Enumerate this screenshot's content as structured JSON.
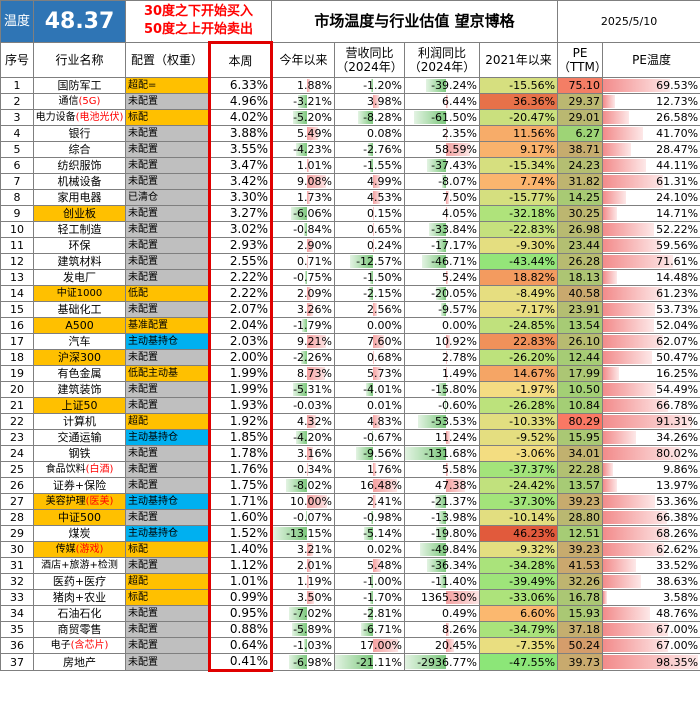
{
  "header": {
    "temp_label": "温度",
    "temp_value": "48.37",
    "rule_line1": "30度之下开始买入",
    "rule_line2": "50度之上开始卖出",
    "title": "市场温度与行业估值 望京博格",
    "date": "2025/5/10"
  },
  "columns": [
    "序号",
    "行业名称",
    "配置（权重）",
    "本周",
    "今年以来",
    "营收同比（2024年）",
    "利润同比（2024年）",
    "2021年以来",
    "PE（TTM）",
    "PE温度"
  ],
  "colors": {
    "index_yellow": "#ffc000",
    "active_blue": "#00b0f0",
    "alloc_gray": "#bfbfbf",
    "bar_red": "#f4a0a0",
    "bar_green": "#9bd49b"
  },
  "rows": [
    {
      "no": "1",
      "name": "国防军工",
      "name_hl": "",
      "alloc": "超配=",
      "week": "6.33%",
      "ytd": "1.88%",
      "ytd_v": 1.88,
      "rev": "-1.20%",
      "rev_v": -1.2,
      "profit": "-39.24%",
      "profit_v": -39.24,
      "since21": "-15.56%",
      "since21_v": -15.56,
      "pe": "75.10",
      "pe_v": 75.1,
      "pet": "69.53%",
      "pet_v": 69.53,
      "name_bg": "#ffffff",
      "alloc_bg": "#ffc000"
    },
    {
      "no": "2",
      "name": "通信",
      "name_hl": "(5G)",
      "alloc": "未配置",
      "week": "4.96%",
      "ytd": "-3.21%",
      "ytd_v": -3.21,
      "rev": "3.98%",
      "rev_v": 3.98,
      "profit": "6.44%",
      "profit_v": 6.44,
      "since21": "36.36%",
      "since21_v": 36.36,
      "pe": "29.37",
      "pe_v": 29.37,
      "pet": "12.73%",
      "pet_v": 12.73,
      "name_bg": "#ffffff",
      "alloc_bg": "#bfbfbf"
    },
    {
      "no": "3",
      "name": "电力设备",
      "name_hl": "(电池光伏)",
      "alloc": "标配",
      "week": "4.02%",
      "ytd": "-5.20%",
      "ytd_v": -5.2,
      "rev": "-8.28%",
      "rev_v": -8.28,
      "profit": "-61.50%",
      "profit_v": -61.5,
      "since21": "-20.47%",
      "since21_v": -20.47,
      "pe": "29.01",
      "pe_v": 29.01,
      "pet": "26.58%",
      "pet_v": 26.58,
      "name_bg": "#ffffff",
      "alloc_bg": "#ffc000"
    },
    {
      "no": "4",
      "name": "银行",
      "name_hl": "",
      "alloc": "未配置",
      "week": "3.88%",
      "ytd": "5.49%",
      "ytd_v": 5.49,
      "rev": "0.08%",
      "rev_v": 0.08,
      "profit": "2.35%",
      "profit_v": 2.35,
      "since21": "11.56%",
      "since21_v": 11.56,
      "pe": "6.27",
      "pe_v": 6.27,
      "pet": "41.70%",
      "pet_v": 41.7,
      "name_bg": "#ffffff",
      "alloc_bg": "#bfbfbf"
    },
    {
      "no": "5",
      "name": "综合",
      "name_hl": "",
      "alloc": "未配置",
      "week": "3.55%",
      "ytd": "-4.23%",
      "ytd_v": -4.23,
      "rev": "-2.76%",
      "rev_v": -2.76,
      "profit": "58.59%",
      "profit_v": 58.59,
      "since21": "9.17%",
      "since21_v": 9.17,
      "pe": "38.71",
      "pe_v": 38.71,
      "pet": "28.47%",
      "pet_v": 28.47,
      "name_bg": "#ffffff",
      "alloc_bg": "#bfbfbf"
    },
    {
      "no": "6",
      "name": "纺织服饰",
      "name_hl": "",
      "alloc": "未配置",
      "week": "3.47%",
      "ytd": "1.01%",
      "ytd_v": 1.01,
      "rev": "-1.55%",
      "rev_v": -1.55,
      "profit": "-37.43%",
      "profit_v": -37.43,
      "since21": "-15.34%",
      "since21_v": -15.34,
      "pe": "24.23",
      "pe_v": 24.23,
      "pet": "44.11%",
      "pet_v": 44.11,
      "name_bg": "#ffffff",
      "alloc_bg": "#bfbfbf"
    },
    {
      "no": "7",
      "name": "机械设备",
      "name_hl": "",
      "alloc": "未配置",
      "week": "3.42%",
      "ytd": "9.08%",
      "ytd_v": 9.08,
      "rev": "4.99%",
      "rev_v": 4.99,
      "profit": "-8.07%",
      "profit_v": -8.07,
      "since21": "7.74%",
      "since21_v": 7.74,
      "pe": "31.82",
      "pe_v": 31.82,
      "pet": "61.31%",
      "pet_v": 61.31,
      "name_bg": "#ffffff",
      "alloc_bg": "#bfbfbf"
    },
    {
      "no": "8",
      "name": "家用电器",
      "name_hl": "",
      "alloc": "已清仓",
      "week": "3.30%",
      "ytd": "1.73%",
      "ytd_v": 1.73,
      "rev": "4.53%",
      "rev_v": 4.53,
      "profit": "7.50%",
      "profit_v": 7.5,
      "since21": "-15.77%",
      "since21_v": -15.77,
      "pe": "14.25",
      "pe_v": 14.25,
      "pet": "24.10%",
      "pet_v": 24.1,
      "name_bg": "#ffffff",
      "alloc_bg": "#bfbfbf"
    },
    {
      "no": "9",
      "name": "创业板",
      "name_hl": "",
      "alloc": "未配置",
      "week": "3.27%",
      "ytd": "-6.06%",
      "ytd_v": -6.06,
      "rev": "0.15%",
      "rev_v": 0.15,
      "profit": "4.05%",
      "profit_v": 4.05,
      "since21": "-32.18%",
      "since21_v": -32.18,
      "pe": "30.25",
      "pe_v": 30.25,
      "pet": "14.71%",
      "pet_v": 14.71,
      "name_bg": "#ffc000",
      "alloc_bg": "#bfbfbf"
    },
    {
      "no": "10",
      "name": "轻工制造",
      "name_hl": "",
      "alloc": "未配置",
      "week": "3.02%",
      "ytd": "-0.84%",
      "ytd_v": -0.84,
      "rev": "0.65%",
      "rev_v": 0.65,
      "profit": "-33.84%",
      "profit_v": -33.84,
      "since21": "-22.83%",
      "since21_v": -22.83,
      "pe": "26.98",
      "pe_v": 26.98,
      "pet": "52.22%",
      "pet_v": 52.22,
      "name_bg": "#ffffff",
      "alloc_bg": "#bfbfbf"
    },
    {
      "no": "11",
      "name": "环保",
      "name_hl": "",
      "alloc": "未配置",
      "week": "2.93%",
      "ytd": "2.90%",
      "ytd_v": 2.9,
      "rev": "0.24%",
      "rev_v": 0.24,
      "profit": "-17.17%",
      "profit_v": -17.17,
      "since21": "-9.30%",
      "since21_v": -9.3,
      "pe": "23.44",
      "pe_v": 23.44,
      "pet": "59.56%",
      "pet_v": 59.56,
      "name_bg": "#ffffff",
      "alloc_bg": "#bfbfbf"
    },
    {
      "no": "12",
      "name": "建筑材料",
      "name_hl": "",
      "alloc": "未配置",
      "week": "2.55%",
      "ytd": "0.71%",
      "ytd_v": 0.71,
      "rev": "-12.57%",
      "rev_v": -12.57,
      "profit": "-46.71%",
      "profit_v": -46.71,
      "since21": "-43.44%",
      "since21_v": -43.44,
      "pe": "26.28",
      "pe_v": 26.28,
      "pet": "71.61%",
      "pet_v": 71.61,
      "name_bg": "#ffffff",
      "alloc_bg": "#bfbfbf"
    },
    {
      "no": "13",
      "name": "发电厂",
      "name_hl": "",
      "alloc": "未配置",
      "week": "2.22%",
      "ytd": "-0.75%",
      "ytd_v": -0.75,
      "rev": "-1.50%",
      "rev_v": -1.5,
      "profit": "5.24%",
      "profit_v": 5.24,
      "since21": "18.82%",
      "since21_v": 18.82,
      "pe": "18.13",
      "pe_v": 18.13,
      "pet": "14.48%",
      "pet_v": 14.48,
      "name_bg": "#ffffff",
      "alloc_bg": "#bfbfbf"
    },
    {
      "no": "14",
      "name": "中证1000",
      "name_hl": "",
      "alloc": "低配",
      "week": "2.22%",
      "ytd": "2.09%",
      "ytd_v": 2.09,
      "rev": "-2.15%",
      "rev_v": -2.15,
      "profit": "-20.05%",
      "profit_v": -20.05,
      "since21": "-8.49%",
      "since21_v": -8.49,
      "pe": "40.58",
      "pe_v": 40.58,
      "pet": "61.23%",
      "pet_v": 61.23,
      "name_bg": "#ffc000",
      "alloc_bg": "#ffc000"
    },
    {
      "no": "15",
      "name": "基础化工",
      "name_hl": "",
      "alloc": "未配置",
      "week": "2.07%",
      "ytd": "3.26%",
      "ytd_v": 3.26,
      "rev": "2.56%",
      "rev_v": 2.56,
      "profit": "-9.57%",
      "profit_v": -9.57,
      "since21": "-7.17%",
      "since21_v": -7.17,
      "pe": "23.91",
      "pe_v": 23.91,
      "pet": "53.73%",
      "pet_v": 53.73,
      "name_bg": "#ffffff",
      "alloc_bg": "#bfbfbf"
    },
    {
      "no": "16",
      "name": "A500",
      "name_hl": "",
      "alloc": "基准配置",
      "week": "2.04%",
      "ytd": "-1.79%",
      "ytd_v": -1.79,
      "rev": "0.00%",
      "rev_v": 0,
      "profit": "0.00%",
      "profit_v": 0,
      "since21": "-24.85%",
      "since21_v": -24.85,
      "pe": "13.54",
      "pe_v": 13.54,
      "pet": "52.04%",
      "pet_v": 52.04,
      "name_bg": "#ffc000",
      "alloc_bg": "#ffc000"
    },
    {
      "no": "17",
      "name": "汽车",
      "name_hl": "",
      "alloc": "主动基持仓",
      "week": "2.03%",
      "ytd": "9.21%",
      "ytd_v": 9.21,
      "rev": "7.60%",
      "rev_v": 7.6,
      "profit": "10.92%",
      "profit_v": 10.92,
      "since21": "22.83%",
      "since21_v": 22.83,
      "pe": "26.10",
      "pe_v": 26.1,
      "pet": "62.07%",
      "pet_v": 62.07,
      "name_bg": "#ffffff",
      "alloc_bg": "#00b0f0"
    },
    {
      "no": "18",
      "name": "沪深300",
      "name_hl": "",
      "alloc": "未配置",
      "week": "2.00%",
      "ytd": "-2.26%",
      "ytd_v": -2.26,
      "rev": "0.68%",
      "rev_v": 0.68,
      "profit": "2.78%",
      "profit_v": 2.78,
      "since21": "-26.20%",
      "since21_v": -26.2,
      "pe": "12.44",
      "pe_v": 12.44,
      "pet": "50.47%",
      "pet_v": 50.47,
      "name_bg": "#ffc000",
      "alloc_bg": "#bfbfbf"
    },
    {
      "no": "19",
      "name": "有色金属",
      "name_hl": "",
      "alloc": "低配主动基",
      "week": "1.99%",
      "ytd": "8.73%",
      "ytd_v": 8.73,
      "rev": "5.73%",
      "rev_v": 5.73,
      "profit": "1.49%",
      "profit_v": 1.49,
      "since21": "14.67%",
      "since21_v": 14.67,
      "pe": "17.99",
      "pe_v": 17.99,
      "pet": "16.25%",
      "pet_v": 16.25,
      "name_bg": "#ffffff",
      "alloc_bg": "#ffc000"
    },
    {
      "no": "20",
      "name": "建筑装饰",
      "name_hl": "",
      "alloc": "未配置",
      "week": "1.99%",
      "ytd": "-5.31%",
      "ytd_v": -5.31,
      "rev": "-4.01%",
      "rev_v": -4.01,
      "profit": "-15.80%",
      "profit_v": -15.8,
      "since21": "-1.97%",
      "since21_v": -1.97,
      "pe": "10.50",
      "pe_v": 10.5,
      "pet": "54.49%",
      "pet_v": 54.49,
      "name_bg": "#ffffff",
      "alloc_bg": "#bfbfbf"
    },
    {
      "no": "21",
      "name": "上证50",
      "name_hl": "",
      "alloc": "未配置",
      "week": "1.93%",
      "ytd": "-0.03%",
      "ytd_v": -0.03,
      "rev": "0.01%",
      "rev_v": 0.01,
      "profit": "-0.60%",
      "profit_v": -0.6,
      "since21": "-26.28%",
      "since21_v": -26.28,
      "pe": "10.84",
      "pe_v": 10.84,
      "pet": "66.78%",
      "pet_v": 66.78,
      "name_bg": "#ffc000",
      "alloc_bg": "#bfbfbf"
    },
    {
      "no": "22",
      "name": "计算机",
      "name_hl": "",
      "alloc": "超配",
      "week": "1.92%",
      "ytd": "4.32%",
      "ytd_v": 4.32,
      "rev": "4.83%",
      "rev_v": 4.83,
      "profit": "-53.53%",
      "profit_v": -53.53,
      "since21": "-10.33%",
      "since21_v": -10.33,
      "pe": "80.29",
      "pe_v": 80.29,
      "pet": "91.31%",
      "pet_v": 91.31,
      "name_bg": "#ffffff",
      "alloc_bg": "#ffc000"
    },
    {
      "no": "23",
      "name": "交通运输",
      "name_hl": "",
      "alloc": "主动基持仓",
      "week": "1.85%",
      "ytd": "-4.20%",
      "ytd_v": -4.2,
      "rev": "-0.67%",
      "rev_v": -0.67,
      "profit": "11.24%",
      "profit_v": 11.24,
      "since21": "-9.52%",
      "since21_v": -9.52,
      "pe": "15.95",
      "pe_v": 15.95,
      "pet": "34.26%",
      "pet_v": 34.26,
      "name_bg": "#ffffff",
      "alloc_bg": "#00b0f0"
    },
    {
      "no": "24",
      "name": "钢铁",
      "name_hl": "",
      "alloc": "未配置",
      "week": "1.78%",
      "ytd": "3.16%",
      "ytd_v": 3.16,
      "rev": "-9.56%",
      "rev_v": -9.56,
      "profit": "-131.68%",
      "profit_v": -131.68,
      "since21": "-3.06%",
      "since21_v": -3.06,
      "pe": "34.01",
      "pe_v": 34.01,
      "pet": "80.02%",
      "pet_v": 80.02,
      "name_bg": "#ffffff",
      "alloc_bg": "#bfbfbf"
    },
    {
      "no": "25",
      "name": "食品饮料",
      "name_hl": "(白酒)",
      "alloc": "未配置",
      "week": "1.76%",
      "ytd": "0.34%",
      "ytd_v": 0.34,
      "rev": "1.76%",
      "rev_v": 1.76,
      "profit": "5.58%",
      "profit_v": 5.58,
      "since21": "-37.37%",
      "since21_v": -37.37,
      "pe": "22.28",
      "pe_v": 22.28,
      "pet": "9.86%",
      "pet_v": 9.86,
      "name_bg": "#ffffff",
      "alloc_bg": "#bfbfbf"
    },
    {
      "no": "26",
      "name": "证券+保险",
      "name_hl": "",
      "alloc": "未配置",
      "week": "1.75%",
      "ytd": "-8.02%",
      "ytd_v": -8.02,
      "rev": "16.48%",
      "rev_v": 16.48,
      "profit": "47.38%",
      "profit_v": 47.38,
      "since21": "-24.42%",
      "since21_v": -24.42,
      "pe": "13.57",
      "pe_v": 13.57,
      "pet": "13.97%",
      "pet_v": 13.97,
      "name_bg": "#ffffff",
      "alloc_bg": "#bfbfbf"
    },
    {
      "no": "27",
      "name": "美容护理",
      "name_hl": "(医美)",
      "alloc": "主动基持仓",
      "week": "1.71%",
      "ytd": "10.00%",
      "ytd_v": 10,
      "rev": "2.41%",
      "rev_v": 2.41,
      "profit": "-21.37%",
      "profit_v": -21.37,
      "since21": "-37.30%",
      "since21_v": -37.3,
      "pe": "39.23",
      "pe_v": 39.23,
      "pet": "53.36%",
      "pet_v": 53.36,
      "name_bg": "#ffc000",
      "alloc_bg": "#00b0f0"
    },
    {
      "no": "28",
      "name": "中证500",
      "name_hl": "",
      "alloc": "未配置",
      "week": "1.60%",
      "ytd": "-0.07%",
      "ytd_v": -0.07,
      "rev": "-0.98%",
      "rev_v": -0.98,
      "profit": "-13.98%",
      "profit_v": -13.98,
      "since21": "-10.14%",
      "since21_v": -10.14,
      "pe": "28.80",
      "pe_v": 28.8,
      "pet": "66.38%",
      "pet_v": 66.38,
      "name_bg": "#ffc000",
      "alloc_bg": "#bfbfbf"
    },
    {
      "no": "29",
      "name": "煤炭",
      "name_hl": "",
      "alloc": "主动基持仓",
      "week": "1.52%",
      "ytd": "-13.15%",
      "ytd_v": -13.15,
      "rev": "-5.14%",
      "rev_v": -5.14,
      "profit": "-19.80%",
      "profit_v": -19.8,
      "since21": "46.23%",
      "since21_v": 46.23,
      "pe": "12.51",
      "pe_v": 12.51,
      "pet": "68.26%",
      "pet_v": 68.26,
      "name_bg": "#ffffff",
      "alloc_bg": "#00b0f0"
    },
    {
      "no": "30",
      "name": "传媒",
      "name_hl": "(游戏)",
      "alloc": "标配",
      "week": "1.40%",
      "ytd": "3.21%",
      "ytd_v": 3.21,
      "rev": "0.02%",
      "rev_v": 0.02,
      "profit": "-49.84%",
      "profit_v": -49.84,
      "since21": "-9.32%",
      "since21_v": -9.32,
      "pe": "39.23",
      "pe_v": 39.23,
      "pet": "62.62%",
      "pet_v": 62.62,
      "name_bg": "#ffc000",
      "alloc_bg": "#ffc000"
    },
    {
      "no": "31",
      "name": "酒店+旅游+检测",
      "name_hl": "",
      "alloc": "未配置",
      "week": "1.12%",
      "ytd": "2.01%",
      "ytd_v": 2.01,
      "rev": "5.48%",
      "rev_v": 5.48,
      "profit": "-36.34%",
      "profit_v": -36.34,
      "since21": "-34.28%",
      "since21_v": -34.28,
      "pe": "41.53",
      "pe_v": 41.53,
      "pet": "33.52%",
      "pet_v": 33.52,
      "name_bg": "#ffffff",
      "alloc_bg": "#bfbfbf"
    },
    {
      "no": "32",
      "name": "医药+医疗",
      "name_hl": "",
      "alloc": "超配",
      "week": "1.01%",
      "ytd": "1.19%",
      "ytd_v": 1.19,
      "rev": "-1.00%",
      "rev_v": -1.0,
      "profit": "-11.40%",
      "profit_v": -11.4,
      "since21": "-39.49%",
      "since21_v": -39.49,
      "pe": "32.26",
      "pe_v": 32.26,
      "pet": "38.63%",
      "pet_v": 38.63,
      "name_bg": "#ffffff",
      "alloc_bg": "#ffc000"
    },
    {
      "no": "33",
      "name": "猪肉+农业",
      "name_hl": "",
      "alloc": "标配",
      "week": "0.99%",
      "ytd": "3.50%",
      "ytd_v": 3.5,
      "rev": "-1.70%",
      "rev_v": -1.7,
      "profit": "1365.30%",
      "profit_v": 1365.3,
      "since21": "-33.06%",
      "since21_v": -33.06,
      "pe": "16.78",
      "pe_v": 16.78,
      "pet": "3.58%",
      "pet_v": 3.58,
      "name_bg": "#ffffff",
      "alloc_bg": "#ffc000"
    },
    {
      "no": "34",
      "name": "石油石化",
      "name_hl": "",
      "alloc": "未配置",
      "week": "0.95%",
      "ytd": "-7.02%",
      "ytd_v": -7.02,
      "rev": "-2.81%",
      "rev_v": -2.81,
      "profit": "0.49%",
      "profit_v": 0.49,
      "since21": "6.60%",
      "since21_v": 6.6,
      "pe": "15.93",
      "pe_v": 15.93,
      "pet": "48.76%",
      "pet_v": 48.76,
      "name_bg": "#ffffff",
      "alloc_bg": "#bfbfbf"
    },
    {
      "no": "35",
      "name": "商贸零售",
      "name_hl": "",
      "alloc": "未配置",
      "week": "0.88%",
      "ytd": "-5.89%",
      "ytd_v": -5.89,
      "rev": "-6.71%",
      "rev_v": -6.71,
      "profit": "8.26%",
      "profit_v": 8.26,
      "since21": "-34.79%",
      "since21_v": -34.79,
      "pe": "37.18",
      "pe_v": 37.18,
      "pet": "67.00%",
      "pet_v": 67.0,
      "name_bg": "#ffffff",
      "alloc_bg": "#bfbfbf"
    },
    {
      "no": "36",
      "name": "电子",
      "name_hl": "(含芯片)",
      "alloc": "未配置",
      "week": "0.64%",
      "ytd": "-1.03%",
      "ytd_v": -1.03,
      "rev": "17.00%",
      "rev_v": 17.0,
      "profit": "20.45%",
      "profit_v": 20.45,
      "since21": "-7.35%",
      "since21_v": -7.35,
      "pe": "50.24",
      "pe_v": 50.24,
      "pet": "67.00%",
      "pet_v": 67.0,
      "name_bg": "#ffffff",
      "alloc_bg": "#bfbfbf"
    },
    {
      "no": "37",
      "name": "房地产",
      "name_hl": "",
      "alloc": "未配置",
      "week": "0.41%",
      "ytd": "-6.98%",
      "ytd_v": -6.98,
      "rev": "-21.11%",
      "rev_v": -21.11,
      "profit": "-2936.77%",
      "profit_v": -2936.77,
      "since21": "-47.55%",
      "since21_v": -47.55,
      "pe": "39.73",
      "pe_v": 39.73,
      "pet": "98.35%",
      "pet_v": 98.35,
      "name_bg": "#ffffff",
      "alloc_bg": "#bfbfbf"
    }
  ]
}
